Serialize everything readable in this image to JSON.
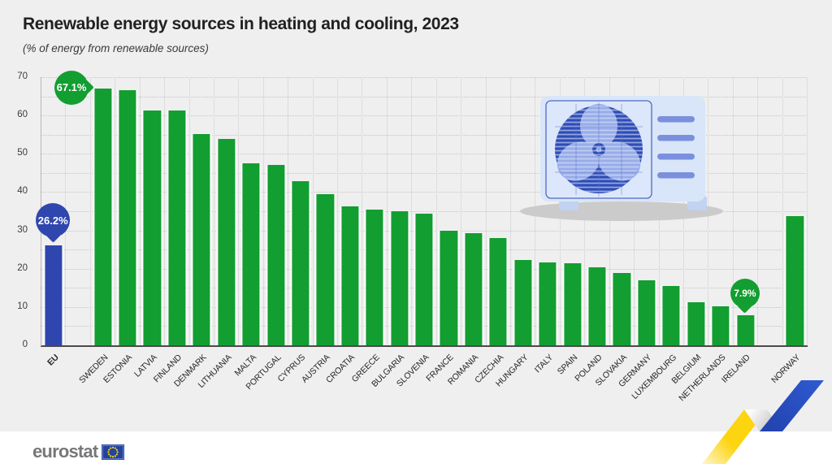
{
  "page": {
    "title": "Renewable energy sources in heating and cooling, 2023",
    "subtitle": "(% of energy from renewable sources)"
  },
  "chart_data": {
    "type": "bar",
    "title": "Renewable energy sources in heating and cooling, 2023",
    "subtitle": "(% of energy from renewable sources)",
    "unit": "%",
    "ylim": [
      0,
      70
    ],
    "yticks": [
      0,
      10,
      20,
      30,
      40,
      50,
      60,
      70
    ],
    "minor_gridline_step": 5,
    "grid": true,
    "legend": "none",
    "categories": [
      "EU",
      "SWEDEN",
      "ESTONIA",
      "LATVIA",
      "FINLAND",
      "DENMARK",
      "LITHUANIA",
      "MALTA",
      "PORTUGAL",
      "CYPRUS",
      "AUSTRIA",
      "CROATIA",
      "GREECE",
      "BULGARIA",
      "SLOVENIA",
      "FRANCE",
      "ROMANIA",
      "CZECHIA",
      "HUNGARY",
      "ITALY",
      "SPAIN",
      "POLAND",
      "SLOVAKIA",
      "GERMANY",
      "LUXEMBOURG",
      "BELGIUM",
      "NETHERLANDS",
      "IRELAND",
      "NORWAY"
    ],
    "values": [
      26.2,
      67.1,
      66.7,
      61.4,
      61.3,
      55.1,
      53.8,
      47.5,
      47.2,
      42.9,
      39.4,
      36.2,
      35.5,
      35.0,
      34.3,
      29.9,
      29.2,
      27.9,
      22.3,
      21.7,
      21.4,
      20.4,
      18.8,
      17.0,
      15.4,
      11.2,
      10.1,
      7.9,
      33.7
    ],
    "gap_after": [
      "EU",
      "IRELAND"
    ],
    "highlight": {
      "EU": "#2f46ae"
    },
    "colors": {
      "bar_green": "#129e30",
      "bar_blue": "#2f46ae"
    },
    "callouts": [
      {
        "text": "67.1%",
        "target": "SWEDEN",
        "color": "#129e30",
        "tail": "right",
        "size": 42,
        "font": 13
      },
      {
        "text": "26.2%",
        "target": "EU",
        "color": "#2f46ae",
        "tail": "down",
        "size": 42,
        "font": 13
      },
      {
        "text": "7.9%",
        "target": "IRELAND",
        "color": "#129e30",
        "tail": "down",
        "size": 36,
        "font": 12
      }
    ]
  },
  "illustration": {
    "name": "air-conditioner-unit"
  },
  "footer": {
    "brand": "eurostat"
  },
  "decoration": {
    "name": "yellow-blue-ribbon"
  }
}
